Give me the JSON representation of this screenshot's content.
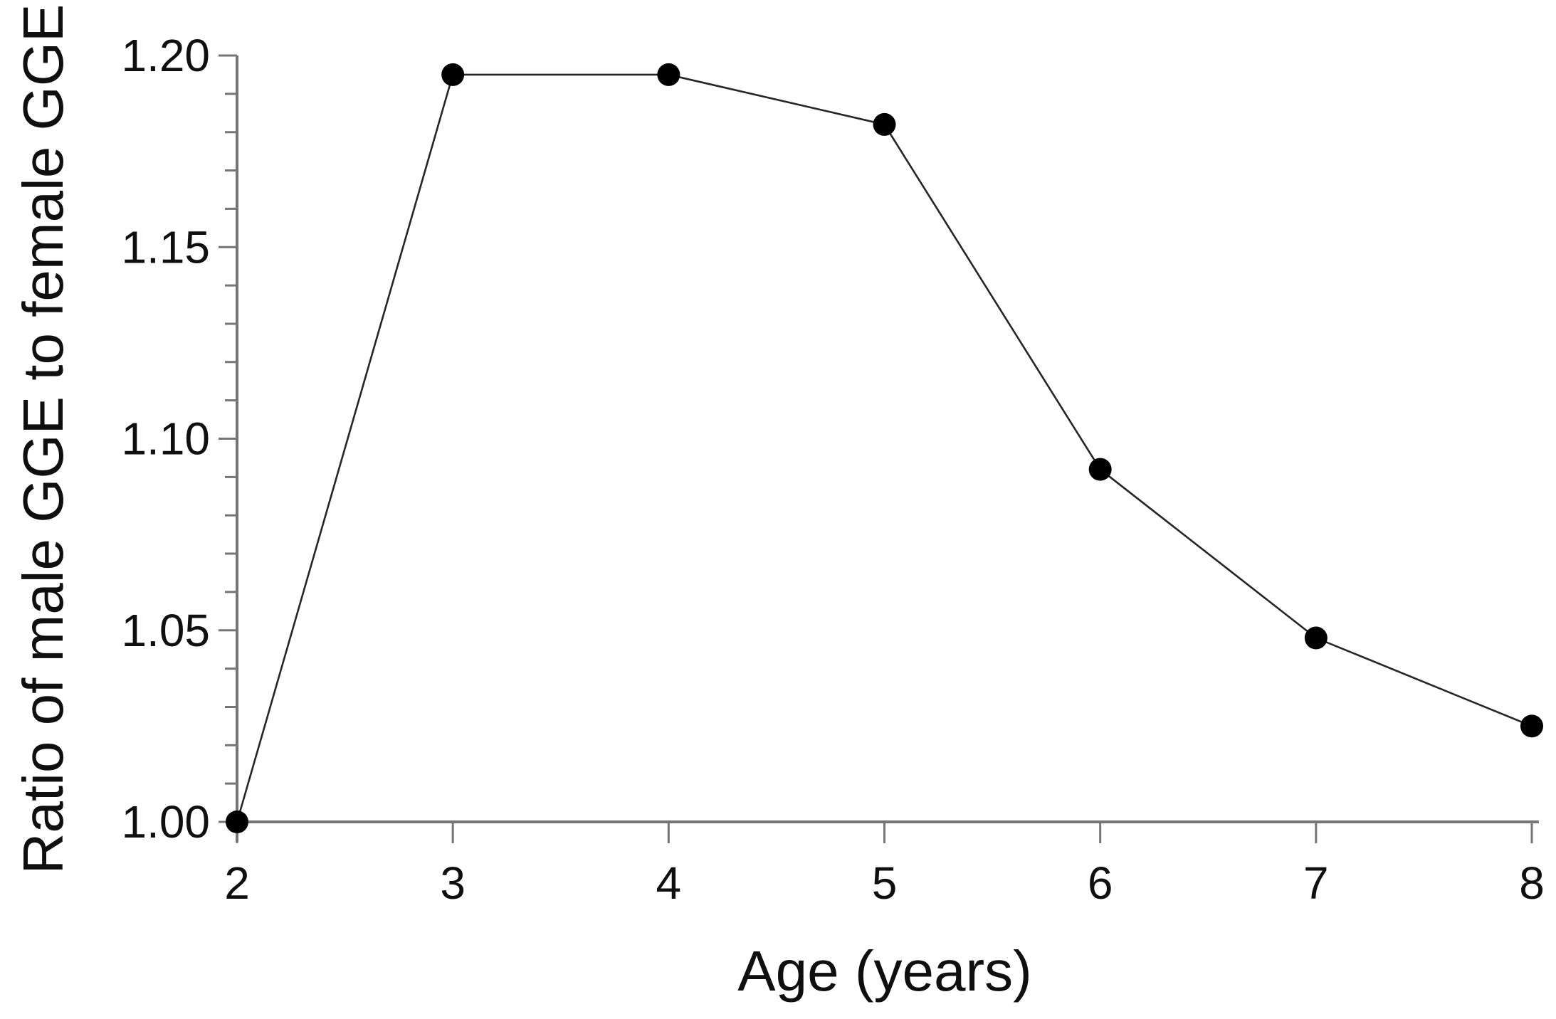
{
  "chart_data": {
    "type": "line",
    "xlabel": "Age (years)",
    "ylabel": "Ratio of male GGE to female GGE",
    "x": [
      2,
      3,
      4,
      5,
      6,
      7,
      8
    ],
    "values": [
      1.0,
      1.195,
      1.195,
      1.182,
      1.092,
      1.048,
      1.025
    ],
    "xlim": [
      2,
      8
    ],
    "ylim": [
      1.0,
      1.2
    ],
    "x_tick_labels": [
      "2",
      "3",
      "4",
      "5",
      "6",
      "7",
      "8"
    ],
    "y_major_tick_labels": [
      "1.00",
      "1.05",
      "1.10",
      "1.15",
      "1.20"
    ],
    "y_major_tick_step": 0.05,
    "y_minor_tick_step": 0.01,
    "grid": "off",
    "legend": "none",
    "marker": "filled-circle",
    "colors": {
      "line": "#262626",
      "marker": "#000000",
      "axis": "#757575",
      "text": "#0f0f0f",
      "background": "#ffffff"
    }
  }
}
